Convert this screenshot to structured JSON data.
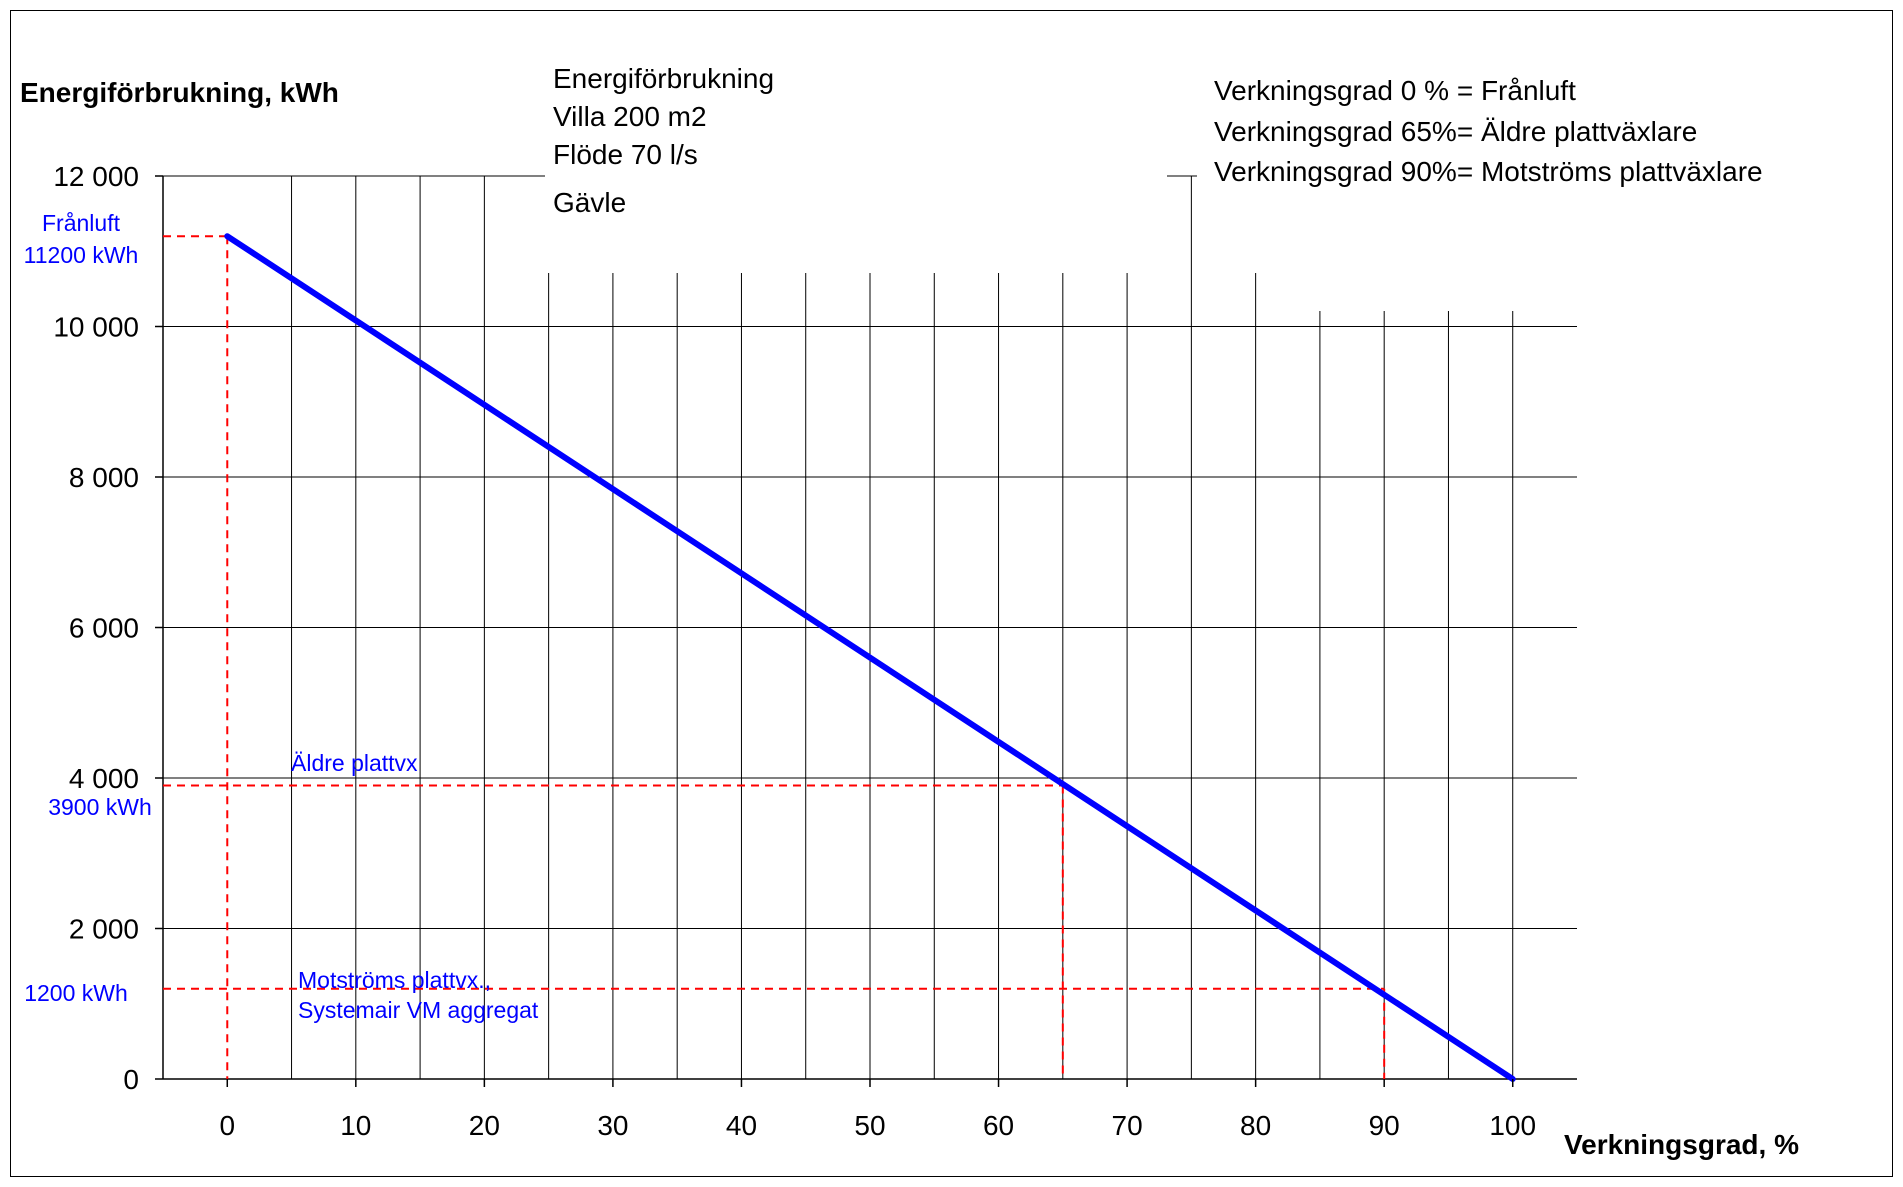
{
  "chart_data": {
    "type": "line",
    "title_lines": [
      "Energiförbrukning",
      "Villa 200 m2",
      "Flöde 70 l/s",
      "Gävle"
    ],
    "legend_lines": [
      "Verkningsgrad 0 % = Frånluft",
      "Verkningsgrad 65%= Äldre plattväxlare",
      "Verkningsgrad 90%= Motströms plattväxlare"
    ],
    "xlabel": "Verkningsgrad, %",
    "ylabel": "Energiförbrukning, kWh",
    "xlim": [
      -5,
      105
    ],
    "ylim": [
      0,
      12000
    ],
    "x_ticks": [
      0,
      10,
      20,
      30,
      40,
      50,
      60,
      70,
      80,
      90,
      100
    ],
    "x_tick_labels": [
      "0",
      "10",
      "20",
      "30",
      "40",
      "50",
      "60",
      "70",
      "80",
      "90",
      "100"
    ],
    "y_ticks": [
      0,
      2000,
      4000,
      6000,
      8000,
      10000,
      12000
    ],
    "y_tick_labels": [
      "0",
      "2 000",
      "4 000",
      "6 000",
      "8 000",
      "10 000",
      "12 000"
    ],
    "grid": true,
    "series": [
      {
        "x": [
          0,
          100
        ],
        "y": [
          11200,
          0
        ],
        "color": "#0000ff"
      }
    ],
    "reference_points": [
      {
        "x": 0,
        "y": 11200,
        "label_lines": [
          "Frånluft",
          "11200 kWh"
        ]
      },
      {
        "x": 65,
        "y": 3900,
        "label_lines": [
          "Äldre plattvx",
          "3900 kWh"
        ]
      },
      {
        "x": 90,
        "y": 1200,
        "label_lines": [
          "Motströms plattvx.,",
          "Systemair VM aggregat",
          "1200 kWh"
        ]
      }
    ],
    "colors": {
      "line": "#0000ff",
      "reference": "#ff0000",
      "annotation": "#0000ff",
      "grid": "#000000"
    }
  }
}
